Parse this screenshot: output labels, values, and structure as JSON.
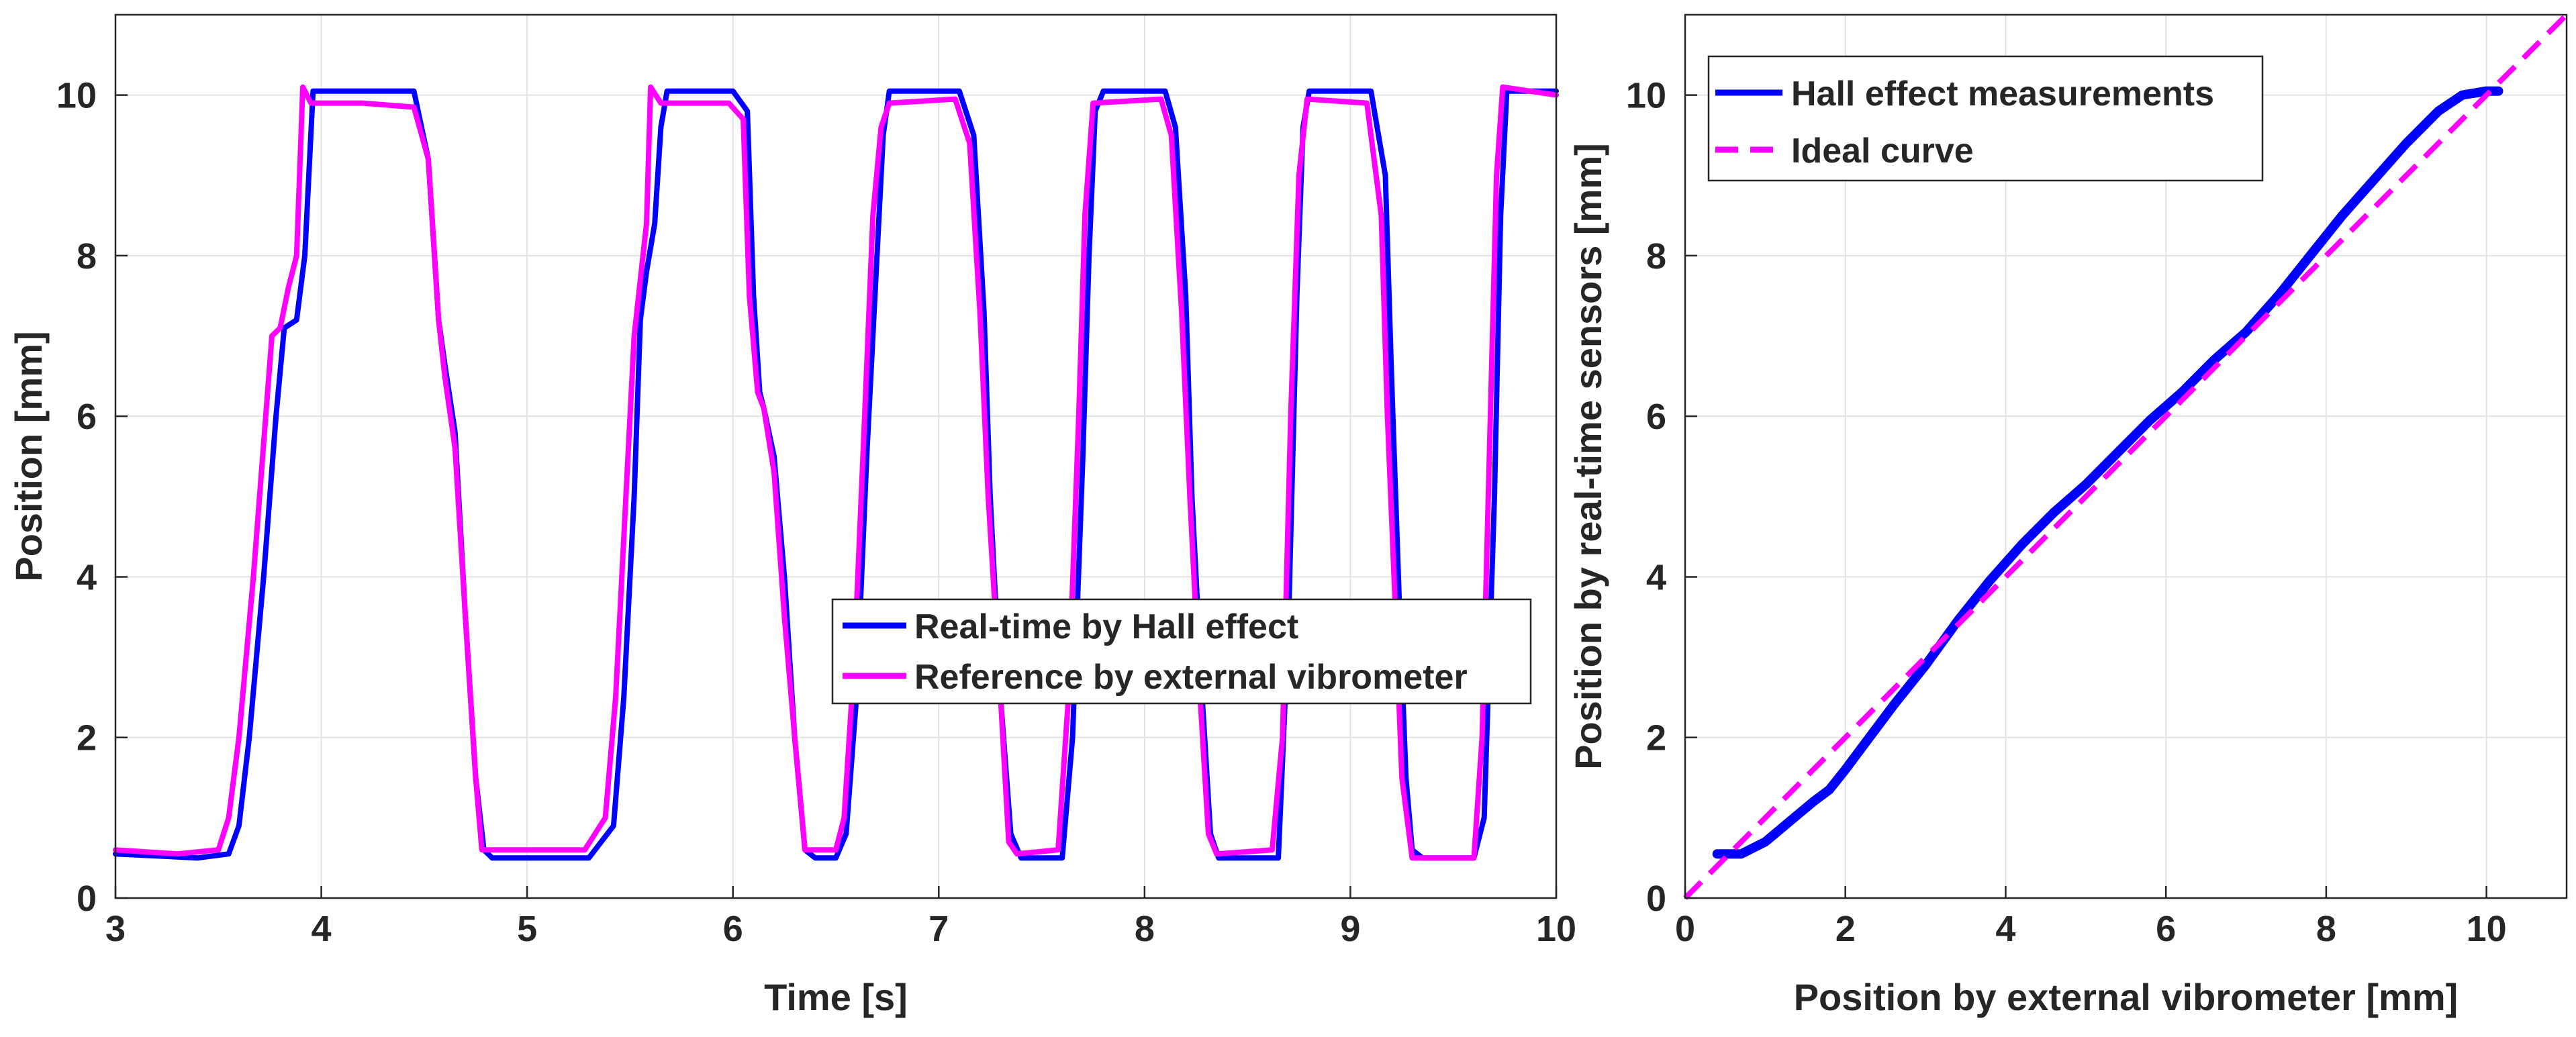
{
  "colors": {
    "hall": "#0000ff",
    "reference": "#ff00ff",
    "axes": "#262626",
    "grid": "#e3e3e3"
  },
  "chart_data": [
    {
      "type": "line",
      "xlabel": "Time [s]",
      "ylabel": "Position [mm]",
      "xlim": [
        3,
        10
      ],
      "ylim": [
        0,
        11
      ],
      "xticks": [
        "3",
        "4",
        "5",
        "6",
        "7",
        "8",
        "9",
        "10"
      ],
      "yticks": [
        "0",
        "2",
        "4",
        "6",
        "8",
        "10"
      ],
      "grid": true,
      "legend_location": "middle-right",
      "series": [
        {
          "name": "Real-time by Hall effect",
          "color": "#0000ff",
          "x": [
            3.0,
            3.4,
            3.55,
            3.6,
            3.65,
            3.72,
            3.78,
            3.82,
            3.88,
            3.92,
            3.96,
            4.2,
            4.45,
            4.52,
            4.57,
            4.6,
            4.65,
            4.7,
            4.75,
            4.79,
            4.83,
            4.9,
            5.3,
            5.42,
            5.47,
            5.52,
            5.55,
            5.58,
            5.62,
            5.65,
            5.68,
            6.0,
            6.07,
            6.1,
            6.13,
            6.15,
            6.2,
            6.25,
            6.3,
            6.35,
            6.4,
            6.5,
            6.55,
            6.6,
            6.65,
            6.7,
            6.73,
            6.76,
            6.8,
            7.1,
            7.17,
            7.22,
            7.25,
            7.3,
            7.35,
            7.4,
            7.6,
            7.65,
            7.7,
            7.73,
            7.76,
            7.8,
            8.1,
            8.15,
            8.2,
            8.23,
            8.28,
            8.32,
            8.36,
            8.4,
            8.65,
            8.7,
            8.74,
            8.77,
            8.8,
            9.1,
            9.17,
            9.2,
            9.24,
            9.27,
            9.3,
            9.35,
            9.6,
            9.65,
            9.7,
            9.73,
            9.76,
            10.0
          ],
          "values": [
            0.55,
            0.5,
            0.55,
            0.9,
            2.0,
            4.0,
            6.0,
            7.1,
            7.2,
            8.0,
            10.05,
            10.05,
            10.05,
            9.2,
            7.2,
            6.65,
            5.8,
            3.5,
            1.5,
            0.6,
            0.5,
            0.5,
            0.5,
            0.9,
            2.5,
            5.0,
            7.2,
            7.8,
            8.4,
            9.6,
            10.05,
            10.05,
            9.8,
            7.5,
            6.3,
            6.1,
            5.5,
            4.0,
            2.0,
            0.6,
            0.5,
            0.5,
            0.8,
            2.5,
            5.5,
            8.0,
            9.5,
            10.05,
            10.05,
            10.05,
            9.5,
            7.3,
            5.0,
            2.5,
            0.8,
            0.5,
            0.5,
            2.0,
            5.5,
            8.0,
            9.8,
            10.05,
            10.05,
            9.6,
            7.5,
            5.0,
            2.5,
            0.8,
            0.5,
            0.5,
            0.5,
            3.5,
            7.5,
            9.6,
            10.05,
            10.05,
            9.0,
            6.5,
            3.5,
            1.5,
            0.6,
            0.5,
            0.5,
            1.0,
            5.0,
            8.5,
            10.05,
            10.05
          ]
        },
        {
          "name": "Reference by external vibrometer",
          "color": "#ff00ff",
          "x": [
            3.0,
            3.3,
            3.5,
            3.55,
            3.6,
            3.67,
            3.73,
            3.76,
            3.8,
            3.84,
            3.88,
            3.91,
            3.95,
            4.2,
            4.45,
            4.52,
            4.57,
            4.6,
            4.65,
            4.7,
            4.75,
            4.78,
            4.82,
            4.9,
            5.28,
            5.38,
            5.43,
            5.48,
            5.52,
            5.55,
            5.58,
            5.6,
            5.65,
            5.98,
            6.05,
            6.08,
            6.12,
            6.15,
            6.2,
            6.25,
            6.3,
            6.35,
            6.5,
            6.54,
            6.59,
            6.64,
            6.68,
            6.72,
            6.76,
            7.08,
            7.15,
            7.2,
            7.24,
            7.3,
            7.34,
            7.38,
            7.58,
            7.63,
            7.68,
            7.71,
            7.75,
            8.08,
            8.13,
            8.18,
            8.22,
            8.27,
            8.31,
            8.35,
            8.62,
            8.67,
            8.71,
            8.75,
            8.79,
            9.08,
            9.15,
            9.18,
            9.22,
            9.25,
            9.3,
            9.6,
            9.64,
            9.68,
            9.71,
            9.74,
            10.0
          ],
          "values": [
            0.6,
            0.55,
            0.6,
            1.0,
            2.0,
            4.0,
            6.0,
            7.0,
            7.1,
            7.6,
            8.0,
            10.1,
            9.9,
            9.9,
            9.85,
            9.2,
            7.2,
            6.5,
            5.6,
            3.5,
            1.5,
            0.6,
            0.6,
            0.6,
            0.6,
            1.0,
            2.5,
            5.0,
            7.0,
            7.7,
            8.4,
            10.1,
            9.9,
            9.9,
            9.7,
            7.5,
            6.3,
            6.1,
            5.3,
            3.5,
            2.0,
            0.6,
            0.6,
            1.0,
            3.0,
            6.0,
            8.5,
            9.6,
            9.9,
            9.95,
            9.4,
            7.3,
            5.0,
            2.5,
            0.7,
            0.55,
            0.6,
            2.5,
            6.0,
            8.5,
            9.9,
            9.95,
            9.5,
            7.3,
            5.0,
            2.5,
            0.8,
            0.55,
            0.6,
            2.0,
            6.0,
            9.0,
            9.95,
            9.9,
            8.5,
            6.0,
            3.5,
            1.5,
            0.5,
            0.5,
            2.0,
            6.0,
            9.0,
            10.1,
            10.0
          ]
        }
      ]
    },
    {
      "type": "line",
      "xlabel": "Position by external vibrometer [mm]",
      "ylabel": "Position by real-time sensors [mm]",
      "xlim": [
        0,
        11
      ],
      "ylim": [
        0,
        11
      ],
      "xticks": [
        "0",
        "2",
        "4",
        "6",
        "8",
        "10"
      ],
      "yticks": [
        "0",
        "2",
        "4",
        "6",
        "8",
        "10"
      ],
      "grid": true,
      "legend_location": "top-left",
      "series": [
        {
          "name": "Hall effect measurements",
          "color": "#0000ff",
          "style": "solid",
          "x": [
            0.4,
            0.7,
            1.0,
            1.3,
            1.6,
            1.8,
            2.0,
            2.3,
            2.6,
            3.0,
            3.4,
            3.8,
            4.2,
            4.6,
            5.0,
            5.4,
            5.8,
            6.2,
            6.6,
            7.0,
            7.4,
            7.8,
            8.2,
            8.6,
            9.0,
            9.4,
            9.7,
            10.0,
            10.15
          ],
          "values": [
            0.55,
            0.55,
            0.7,
            0.95,
            1.2,
            1.35,
            1.6,
            2.0,
            2.4,
            2.9,
            3.45,
            3.95,
            4.4,
            4.8,
            5.15,
            5.55,
            5.95,
            6.3,
            6.7,
            7.05,
            7.5,
            8.0,
            8.5,
            8.95,
            9.4,
            9.8,
            10.0,
            10.05,
            10.05
          ]
        },
        {
          "name": "Ideal curve",
          "color": "#ff00ff",
          "style": "dashed",
          "x": [
            0,
            11
          ],
          "values": [
            0,
            11
          ]
        }
      ]
    }
  ]
}
